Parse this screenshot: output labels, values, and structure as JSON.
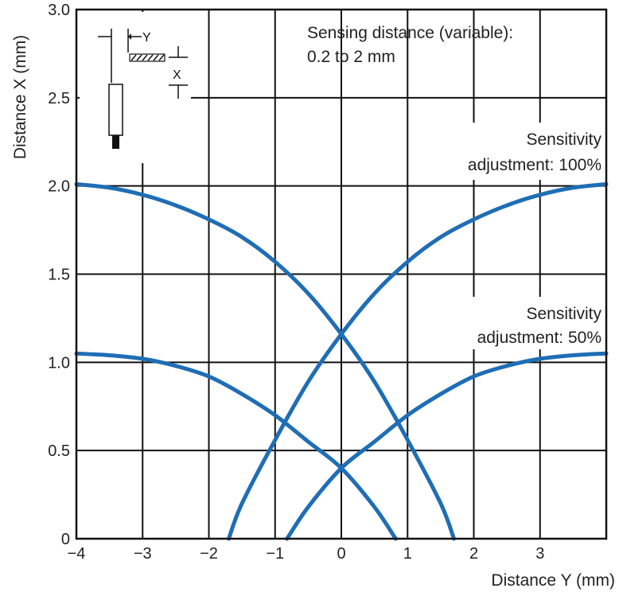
{
  "chart_data": {
    "type": "line",
    "xlabel": "Distance Y (mm)",
    "ylabel": "Distance X (mm)",
    "xlim": [
      -4,
      4
    ],
    "ylim": [
      0,
      3.0
    ],
    "xticks": [
      "−4",
      "−3",
      "−2",
      "−1",
      "0",
      "1",
      "2",
      "3"
    ],
    "yticks": [
      "0",
      "0.5",
      "1.0",
      "1.5",
      "2.0",
      "2.5",
      "3.0"
    ],
    "grid": true,
    "annotations": {
      "sensing_line1": "Sensing distance (variable):",
      "sensing_line2": "0.2 to 2 mm",
      "s100_line1": "Sensitivity",
      "s100_line2": "adjustment: 100%",
      "s50_line1": "Sensitivity",
      "s50_line2": "adjustment: 50%"
    },
    "diagram_labels": {
      "y": "Y",
      "x": "X"
    },
    "series": [
      {
        "x": [
          -4.0,
          -3.5,
          -3.0,
          -2.5,
          -2.0,
          -1.5,
          -1.0,
          -0.5,
          0.0,
          0.5,
          1.0,
          1.5,
          1.7
        ],
        "values": [
          2.01,
          1.99,
          1.95,
          1.89,
          1.81,
          1.71,
          1.57,
          1.39,
          1.16,
          0.89,
          0.56,
          0.2,
          0.0
        ]
      },
      {
        "x": [
          -1.7,
          -1.5,
          -1.0,
          -0.5,
          0.0,
          0.5,
          1.0,
          1.5,
          2.0,
          2.5,
          3.0,
          3.5,
          4.0
        ],
        "values": [
          0.0,
          0.2,
          0.56,
          0.89,
          1.16,
          1.39,
          1.57,
          1.71,
          1.81,
          1.89,
          1.95,
          1.99,
          2.01
        ]
      },
      {
        "x": [
          -4.0,
          -3.5,
          -3.0,
          -2.5,
          -2.0,
          -1.5,
          -1.0,
          -0.5,
          0.0,
          0.5,
          0.82
        ],
        "values": [
          1.05,
          1.04,
          1.02,
          0.98,
          0.92,
          0.82,
          0.7,
          0.55,
          0.4,
          0.18,
          0.0
        ]
      },
      {
        "x": [
          -0.82,
          -0.5,
          0.0,
          0.5,
          1.0,
          1.5,
          2.0,
          2.5,
          3.0,
          3.5,
          4.0
        ],
        "values": [
          0.0,
          0.18,
          0.4,
          0.55,
          0.7,
          0.82,
          0.92,
          0.98,
          1.02,
          1.04,
          1.05
        ]
      }
    ],
    "colors": {
      "curve": "#1f6eb5",
      "grid": "#111111"
    }
  }
}
